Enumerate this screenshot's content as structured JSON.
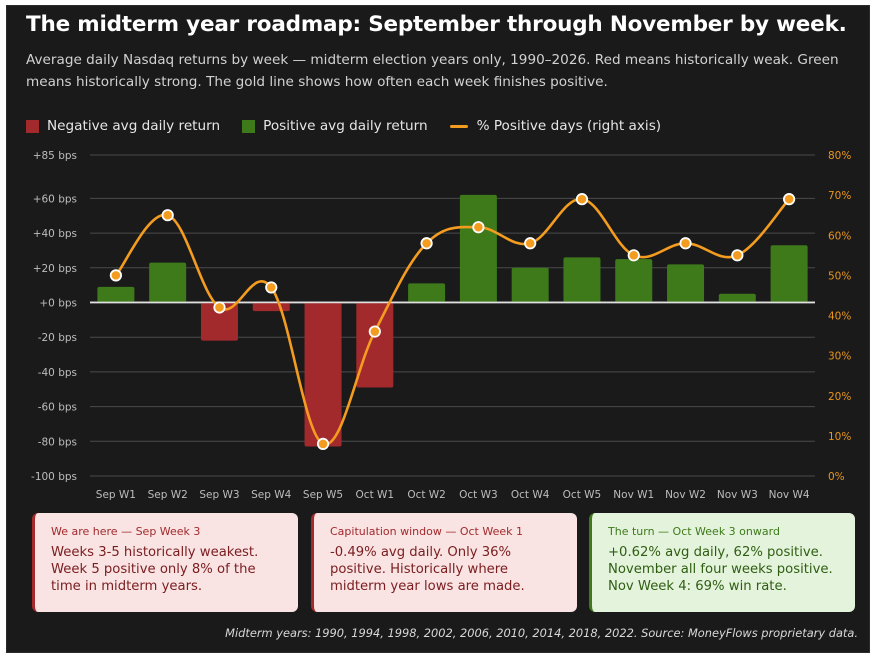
{
  "header": {
    "title": "The midterm year roadmap: September through November by week.",
    "subtitle": "Average daily Nasdaq returns by week — midterm election years only, 1990–2026. Red means historically weak. Green means historically strong. The gold line shows how often each week finishes positive."
  },
  "legend": {
    "negative": "Negative avg daily return",
    "positive": "Positive avg daily return",
    "line": "% Positive days (right axis)"
  },
  "colors": {
    "negative": "#a32a2c",
    "positive": "#3e7a1a",
    "line": "#f39c1f",
    "background": "#1a1a1a"
  },
  "chart_data": {
    "type": "bar",
    "categories": [
      "Sep W1",
      "Sep W2",
      "Sep W3",
      "Sep W4",
      "Sep W5",
      "Oct W1",
      "Oct W2",
      "Oct W3",
      "Oct W4",
      "Oct W5",
      "Nov W1",
      "Nov W2",
      "Nov W3",
      "Nov W4"
    ],
    "series": [
      {
        "name": "Negative avg daily return",
        "values": [
          null,
          null,
          -22,
          -5,
          -83,
          -49,
          null,
          null,
          null,
          null,
          null,
          null,
          null,
          null
        ]
      },
      {
        "name": "Positive avg daily return",
        "values": [
          9,
          23,
          null,
          null,
          null,
          null,
          11,
          62,
          20,
          26,
          25,
          22,
          5,
          33
        ]
      },
      {
        "name": "% Positive days (right axis)",
        "axis": "right",
        "type": "line",
        "values": [
          50,
          65,
          42,
          47,
          8,
          36,
          58,
          62,
          58,
          69,
          55,
          58,
          55,
          69
        ]
      }
    ],
    "y_ticks": [
      "+85 bps",
      "+60 bps",
      "+40 bps",
      "+20 bps",
      "+0 bps",
      "-20 bps",
      "-40 bps",
      "-60 bps",
      "-80 bps",
      "-100 bps"
    ],
    "y_tick_values": [
      85,
      60,
      40,
      20,
      0,
      -20,
      -40,
      -60,
      -80,
      -100
    ],
    "ylim": [
      -100,
      85
    ],
    "y2_ticks": [
      "80%",
      "70%",
      "60%",
      "50%",
      "40%",
      "30%",
      "20%",
      "10%",
      "0%"
    ],
    "y2_tick_values": [
      80,
      70,
      60,
      50,
      40,
      30,
      20,
      10,
      0
    ],
    "y2lim": [
      0,
      80
    ],
    "grid": true,
    "legend_position": "top-left"
  },
  "cards": [
    {
      "title": "We are here — Sep Week 3",
      "body": "Weeks 3-5 historically weakest. Week 5 positive only 8% of the time in midterm years."
    },
    {
      "title": "Capitulation window — Oct Week 1",
      "body": "-0.49% avg daily. Only 36% positive. Historically where midterm year lows are made."
    },
    {
      "title": "The turn — Oct Week 3 onward",
      "body": "+0.62% avg daily, 62% positive. November all four weeks positive. Nov Week 4: 69% win rate."
    }
  ],
  "footer": "Midterm years: 1990, 1994, 1998, 2002, 2006, 2010, 2014, 2018, 2022. Source: MoneyFlows proprietary data."
}
